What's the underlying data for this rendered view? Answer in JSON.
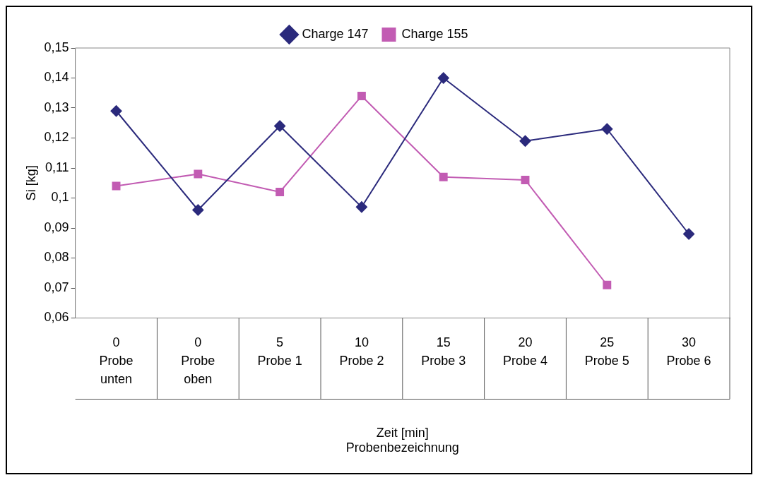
{
  "chart_data": {
    "type": "line",
    "xlabel": "Zeit [min]\nProbenbezeichnung",
    "ylabel": "Si [kg]",
    "categories": [
      "0\nProbe\nunten",
      "0\nProbe\noben",
      "5\nProbe 1",
      "10\nProbe 2",
      "15\nProbe 3",
      "20\nProbe 4",
      "25\nProbe 5",
      "30\nProbe 6"
    ],
    "series": [
      {
        "name": "Charge 147",
        "color": "#2b2a7c",
        "marker": "diamond",
        "values": [
          0.129,
          0.096,
          0.124,
          0.097,
          0.14,
          0.119,
          0.123,
          0.088
        ]
      },
      {
        "name": "Charge 155",
        "color": "#c25cb3",
        "marker": "square",
        "values": [
          0.104,
          0.108,
          0.102,
          0.134,
          0.107,
          0.106,
          0.071,
          null
        ]
      }
    ],
    "ylim": [
      0.06,
      0.15
    ],
    "yticks": [
      {
        "value": 0.06,
        "label": "0,06"
      },
      {
        "value": 0.07,
        "label": "0,07"
      },
      {
        "value": 0.08,
        "label": "0,08"
      },
      {
        "value": 0.09,
        "label": "0,09"
      },
      {
        "value": 0.1,
        "label": "0,1"
      },
      {
        "value": 0.11,
        "label": "0,11"
      },
      {
        "value": 0.12,
        "label": "0,12"
      },
      {
        "value": 0.13,
        "label": "0,13"
      },
      {
        "value": 0.14,
        "label": "0,14"
      },
      {
        "value": 0.15,
        "label": "0,15"
      }
    ],
    "grid": false,
    "legend": "top",
    "line_style": "solid"
  }
}
